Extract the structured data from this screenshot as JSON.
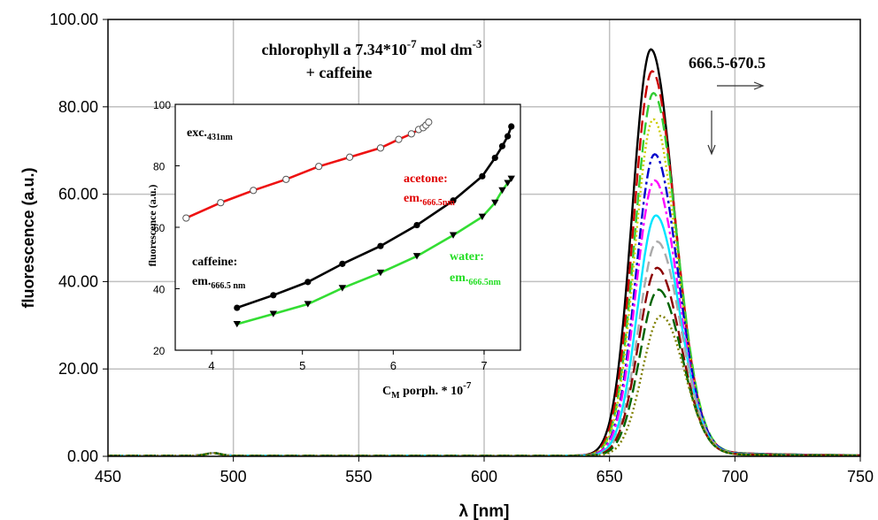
{
  "chart_data": [
    {
      "type": "line",
      "xlabel": "λ [nm]",
      "ylabel": "fluorescence (a.u.)",
      "xlim": [
        450,
        750
      ],
      "ylim": [
        0,
        100
      ],
      "x_ticks": [
        "450",
        "500",
        "550",
        "600",
        "650",
        "700",
        "750"
      ],
      "y_ticks": [
        "0.00",
        "20.00",
        "40.00",
        "60.00",
        "80.00",
        "100.00"
      ],
      "grid": true,
      "title_lines": [
        "chlorophyll a 7.34*10",
        "-7",
        " mol dm",
        "-3",
        "+ caffeine"
      ],
      "annotation": "666.5-670.5",
      "series": [
        {
          "color": "#000000",
          "dash": "",
          "peak_x": 666.5,
          "peak_y": 93
        },
        {
          "color": "#cc0000",
          "dash": "14,6",
          "peak_x": 667,
          "peak_y": 88
        },
        {
          "color": "#33cc33",
          "dash": "14,6",
          "peak_x": 667.5,
          "peak_y": 83
        },
        {
          "color": "#cccc00",
          "dash": "2,3",
          "peak_x": 667.5,
          "peak_y": 77
        },
        {
          "color": "#0000cc",
          "dash": "12,4,3,4",
          "peak_x": 668,
          "peak_y": 69
        },
        {
          "color": "#ff00ff",
          "dash": "12,4,3,4",
          "peak_x": 668,
          "peak_y": 63
        },
        {
          "color": "#00e5ff",
          "dash": "",
          "peak_x": 668.5,
          "peak_y": 55
        },
        {
          "color": "#aaaaaa",
          "dash": "12,6",
          "peak_x": 669,
          "peak_y": 49
        },
        {
          "color": "#8b0000",
          "dash": "14,6",
          "peak_x": 669,
          "peak_y": 43
        },
        {
          "color": "#006400",
          "dash": "14,6",
          "peak_x": 669.5,
          "peak_y": 38
        },
        {
          "color": "#808000",
          "dash": "2,3",
          "peak_x": 670.5,
          "peak_y": 32
        }
      ]
    },
    {
      "type": "line",
      "xlabel": "C",
      "xlabel_sub": "M",
      "xlabel_rest": " porph. * 10",
      "xlabel_sup": "-7",
      "ylabel": "fluorescence (a.u.)",
      "xlim": [
        3.6,
        7.4
      ],
      "ylim": [
        20,
        100
      ],
      "x_ticks": [
        "4",
        "5",
        "6",
        "7"
      ],
      "y_ticks": [
        "20",
        "40",
        "60",
        "80",
        "100"
      ],
      "annotations": [
        {
          "text": "exc.",
          "sub": "431nm"
        },
        {
          "text": "acetone:"
        },
        {
          "text": "em.",
          "sub": "666.5nm"
        },
        {
          "text": "caffeine:"
        },
        {
          "text": "em.",
          "sub": "666.5 nm"
        },
        {
          "text": "water:"
        },
        {
          "text": "em.",
          "sub": "666.5nm"
        }
      ],
      "series": [
        {
          "color": "#ee1111",
          "marker": "open-circle",
          "x": [
            3.72,
            4.1,
            4.46,
            4.82,
            5.18,
            5.52,
            5.86,
            6.06,
            6.2,
            6.28,
            6.33,
            6.36,
            6.39
          ],
          "y": [
            63,
            68,
            72,
            75.6,
            79.8,
            82.8,
            85.8,
            88.6,
            90.4,
            91.8,
            92.4,
            93.2,
            94.2
          ]
        },
        {
          "color": "#000000",
          "marker": "filled-circle",
          "x": [
            4.28,
            4.68,
            5.06,
            5.44,
            5.86,
            6.26,
            6.66,
            6.98,
            7.12,
            7.2,
            7.26,
            7.3
          ],
          "y": [
            33.8,
            37.9,
            42.2,
            48.1,
            53.9,
            60.7,
            68.7,
            76.6,
            82.6,
            86.4,
            89.6,
            92.8
          ]
        },
        {
          "color": "#33dd33",
          "marker": "filled-triangle-down",
          "x": [
            4.28,
            4.68,
            5.06,
            5.44,
            5.86,
            6.26,
            6.66,
            6.98,
            7.12,
            7.2,
            7.26,
            7.3
          ],
          "y": [
            28.5,
            31.8,
            35.0,
            40.2,
            45.2,
            50.6,
            57.4,
            63.4,
            68.0,
            72.0,
            74.4,
            75.8
          ]
        }
      ]
    }
  ]
}
